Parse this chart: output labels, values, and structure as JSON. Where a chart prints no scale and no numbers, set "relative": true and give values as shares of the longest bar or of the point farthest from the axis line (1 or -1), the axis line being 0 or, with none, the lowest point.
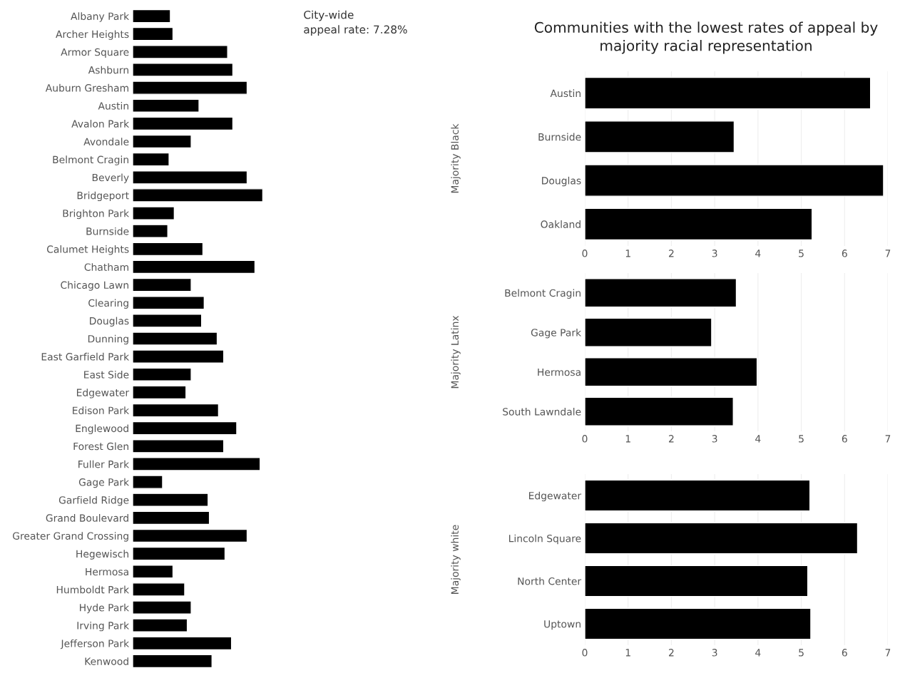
{
  "chart_data": [
    {
      "type": "bar",
      "orientation": "horizontal",
      "relative": true,
      "color": "#000000",
      "categories": [
        "Albany Park",
        "Archer Heights",
        "Armor Square",
        "Ashburn",
        "Auburn Gresham",
        "Austin",
        "Avalon Park",
        "Avondale",
        "Belmont Cragin",
        "Beverly",
        "Bridgeport",
        "Brighton Park",
        "Burnside",
        "Calumet Heights",
        "Chatham",
        "Chicago Lawn",
        "Clearing",
        "Douglas",
        "Dunning",
        "East Garfield Park",
        "East Side",
        "Edgewater",
        "Edison Park",
        "Englewood",
        "Forest Glen",
        "Fuller Park",
        "Gage Park",
        "Garfield Ridge",
        "Grand Boulevard",
        "Greater Grand Crossing",
        "Hegewisch",
        "Hermosa",
        "Humboldt Park",
        "Hyde Park",
        "Irving Park",
        "Jefferson Park",
        "Kenwood"
      ],
      "values": [
        0.29,
        0.31,
        0.73,
        0.77,
        0.88,
        0.51,
        0.77,
        0.45,
        0.28,
        0.88,
        1,
        0.32,
        0.27,
        0.54,
        0.94,
        0.45,
        0.55,
        0.53,
        0.65,
        0.7,
        0.45,
        0.41,
        0.66,
        0.8,
        0.7,
        0.98,
        0.23,
        0.58,
        0.59,
        0.88,
        0.71,
        0.31,
        0.4,
        0.45,
        0.42,
        0.76,
        0.61
      ],
      "annotations": [
        "City-wide\nappeal rate: 7.28%"
      ]
    },
    {
      "type": "bar",
      "orientation": "horizontal",
      "color": "#000000",
      "title": "Communities with the lowest rates of appeal by\nmajority racial representation",
      "ylabel": "Majority Black",
      "categories": [
        "Austin",
        "Burnside",
        "Douglas",
        "Oakland"
      ],
      "values": [
        6.6,
        3.45,
        6.9,
        5.25
      ],
      "xlim": [
        0,
        7
      ],
      "xticks": [
        0,
        1,
        2,
        3,
        4,
        5,
        6,
        7
      ],
      "grid": "x"
    },
    {
      "type": "bar",
      "orientation": "horizontal",
      "color": "#000000",
      "ylabel": "Majority Latinx",
      "categories": [
        "Belmont Cragin",
        "Gage Park",
        "Hermosa",
        "South Lawndale"
      ],
      "values": [
        3.5,
        2.93,
        3.98,
        3.43
      ],
      "xlim": [
        0,
        7
      ],
      "xticks": [
        0,
        1,
        2,
        3,
        4,
        5,
        6,
        7
      ],
      "grid": "x"
    },
    {
      "type": "bar",
      "orientation": "horizontal",
      "color": "#000000",
      "ylabel": "Majority white",
      "categories": [
        "Edgewater",
        "Lincoln Square",
        "North Center",
        "Uptown"
      ],
      "values": [
        5.2,
        6.3,
        5.15,
        5.22
      ],
      "xlim": [
        0,
        7
      ],
      "xticks": [
        0,
        1,
        2,
        3,
        4,
        5,
        6,
        7
      ],
      "grid": "x"
    }
  ]
}
